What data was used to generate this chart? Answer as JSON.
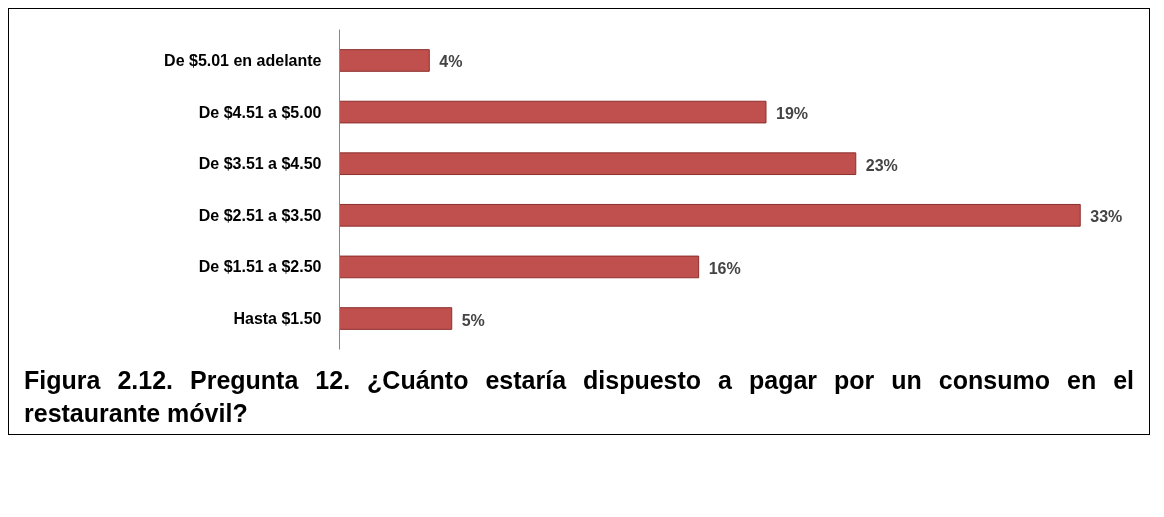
{
  "chart_data": {
    "type": "bar",
    "orientation": "horizontal",
    "title": "Figura 2.12. Pregunta 12. ¿Cuánto estaría dispuesto a pagar por un consumo en el restaurante móvil?",
    "categories": [
      "De $5.01 en adelante",
      "De $4.51 a $5.00",
      "De $3.51 a $4.50",
      "De $2.51 a $3.50",
      "De $1.51 a $2.50",
      "Hasta $1.50"
    ],
    "values": [
      4,
      19,
      23,
      33,
      16,
      5
    ],
    "value_labels": [
      "4%",
      "19%",
      "23%",
      "33%",
      "16%",
      "5%"
    ],
    "color": "#c0504d",
    "grid": false
  }
}
